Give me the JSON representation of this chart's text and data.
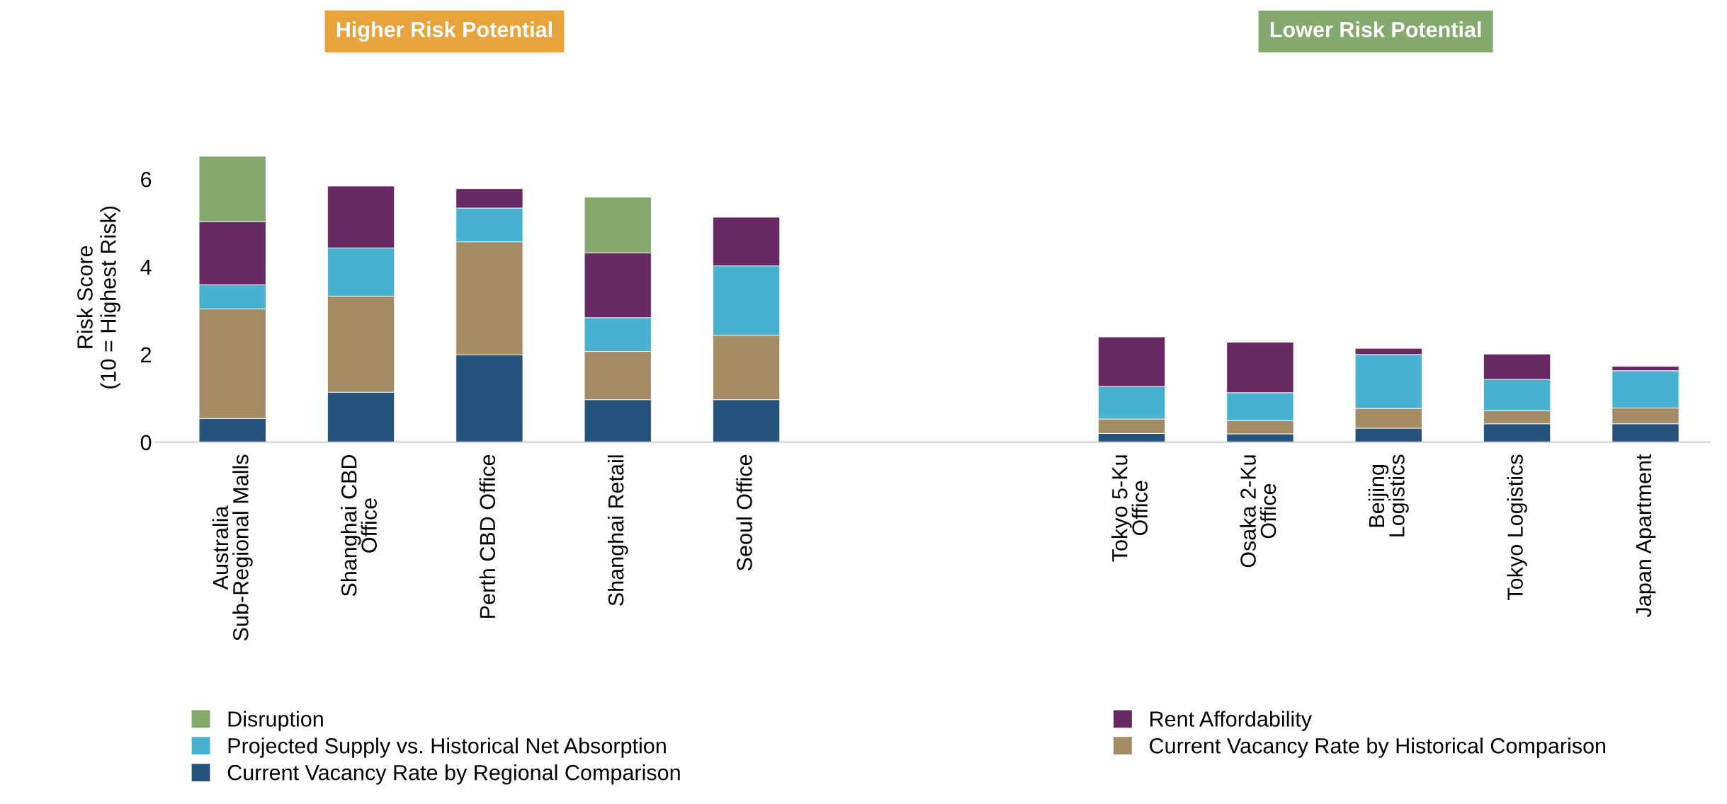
{
  "chart_data": {
    "type": "bar",
    "stacked": true,
    "categories": [
      "Australia\nSub-Regional Malls",
      "Shanghai CBD\nOffice",
      "Perth CBD Office",
      "Shanghai Retail",
      "Seoul Office",
      null,
      null,
      "Tokyo 5-Ku\nOffice",
      "Osaka 2-Ku\nOffice",
      "Beijing\nLogistics",
      "Tokyo Logistics",
      "Japan Apartment"
    ],
    "ylabel": "Risk Score\n(10 = Highest Risk)",
    "ylim": [
      0,
      6.6
    ],
    "yticks": [
      0,
      2,
      4,
      6
    ],
    "grid": false,
    "legend": "bottom",
    "annotations": [
      "Higher Risk Potential",
      "Lower Risk Potential"
    ],
    "series": [
      {
        "name": "Current Vacancy Rate by Regional Comparison",
        "color": "#24527c",
        "values": [
          0.54,
          1.14,
          1.99,
          0.97,
          0.97,
          null,
          null,
          0.2,
          0.19,
          0.32,
          0.42,
          0.42
        ]
      },
      {
        "name": "Current Vacancy Rate by Historical Comparison",
        "color": "#a38b66",
        "values": [
          2.5,
          2.19,
          2.58,
          1.1,
          1.47,
          null,
          null,
          0.33,
          0.3,
          0.45,
          0.3,
          0.36
        ]
      },
      {
        "name": "Projected Supply vs. Historical Net Absorption",
        "color": "#47b1d0",
        "values": [
          0.55,
          1.1,
          0.77,
          0.77,
          1.58,
          null,
          null,
          0.74,
          0.64,
          1.23,
          0.71,
          0.85
        ]
      },
      {
        "name": "Rent Affordability",
        "color": "#672964",
        "values": [
          1.44,
          1.41,
          0.44,
          1.48,
          1.11,
          null,
          null,
          1.13,
          1.15,
          0.14,
          0.58,
          0.1
        ]
      },
      {
        "name": "Disruption",
        "color": "#85a86e",
        "values": [
          1.49,
          0,
          0,
          1.27,
          0,
          null,
          null,
          0,
          0,
          0,
          0,
          0
        ]
      }
    ]
  }
}
